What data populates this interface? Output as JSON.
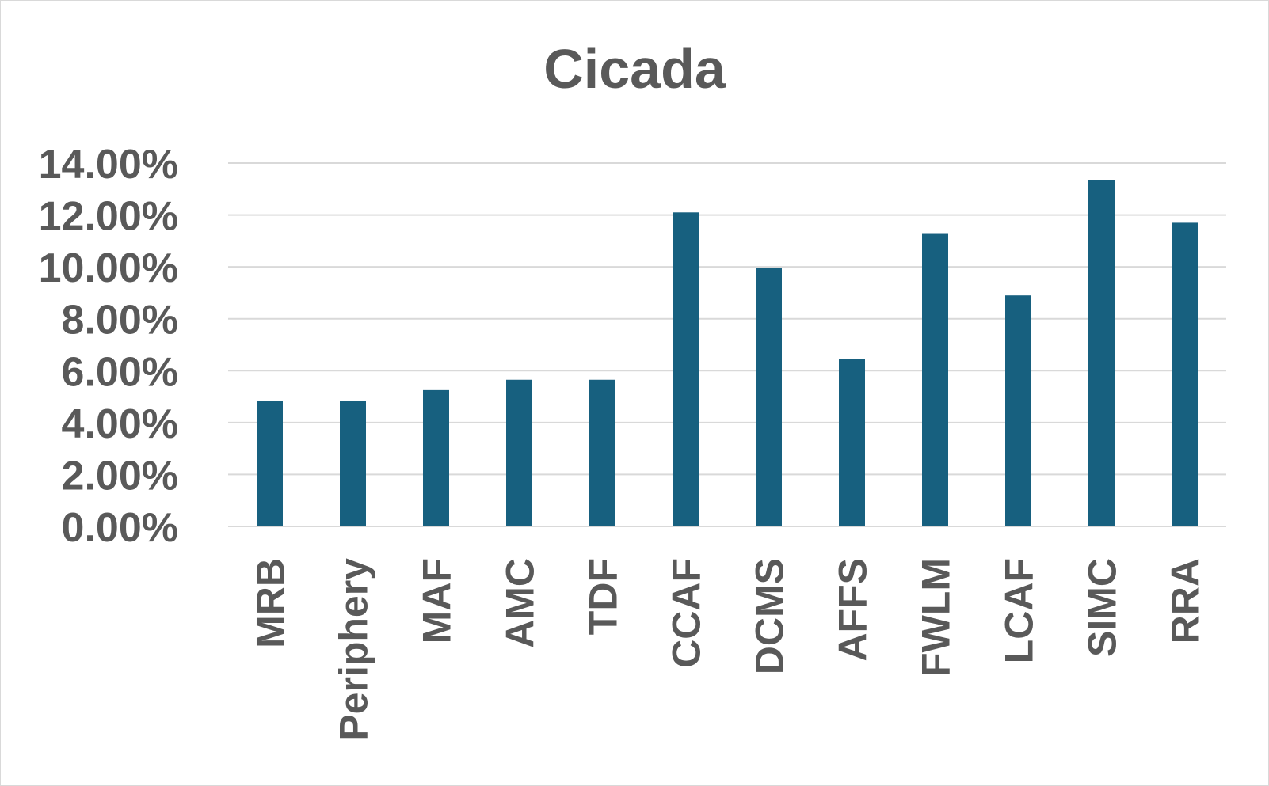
{
  "chart_data": {
    "type": "bar",
    "title": "Cicada",
    "xlabel": "",
    "ylabel": "",
    "ylim": [
      0,
      14
    ],
    "y_tick_values": [
      0,
      2,
      4,
      6,
      8,
      10,
      12,
      14
    ],
    "y_tick_labels": [
      "0.00%",
      "2.00%",
      "4.00%",
      "6.00%",
      "8.00%",
      "10.00%",
      "12.00%",
      "14.00%"
    ],
    "categories": [
      "MRB",
      "Periphery",
      "MAF",
      "AMC",
      "TDF",
      "CCAF",
      "DCMS",
      "AFFS",
      "FWLM",
      "LCAF",
      "SIMC",
      "RRA"
    ],
    "values": [
      4.85,
      4.85,
      5.25,
      5.65,
      5.65,
      12.1,
      9.95,
      6.45,
      11.3,
      8.9,
      13.35,
      11.7
    ],
    "bar_color": "#17607f",
    "grid": true,
    "legend": "none"
  }
}
